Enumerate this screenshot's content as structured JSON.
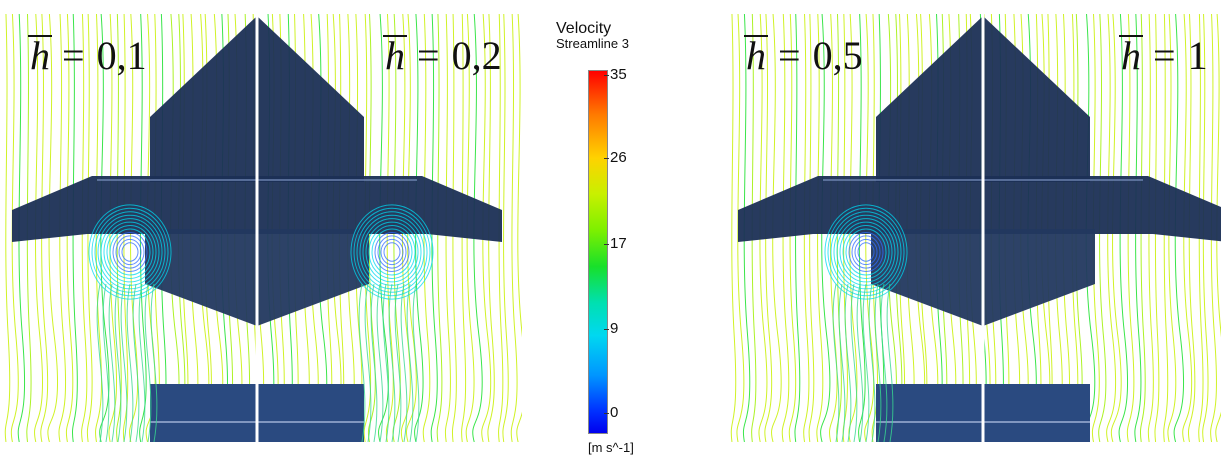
{
  "legend": {
    "title": "Velocity",
    "subtitle": "Streamline 3",
    "ticks": [
      "35",
      "26",
      "17",
      "9",
      "0"
    ],
    "unit": "[m s^-1]"
  },
  "panels": [
    {
      "left_symbol": "h",
      "left_value": "0,1",
      "right_symbol": "h",
      "right_value": "0,2"
    },
    {
      "left_symbol": "h",
      "left_value": "0,5",
      "right_symbol": "h",
      "right_value": "1"
    }
  ],
  "eq_sign": "=",
  "colors": {
    "body": "#1b2f55",
    "streamline_fast": "#c8f000",
    "streamline_mid": "#18e02a",
    "streamline_slow": "#00d8f0",
    "vortex": "#2f6cff"
  }
}
